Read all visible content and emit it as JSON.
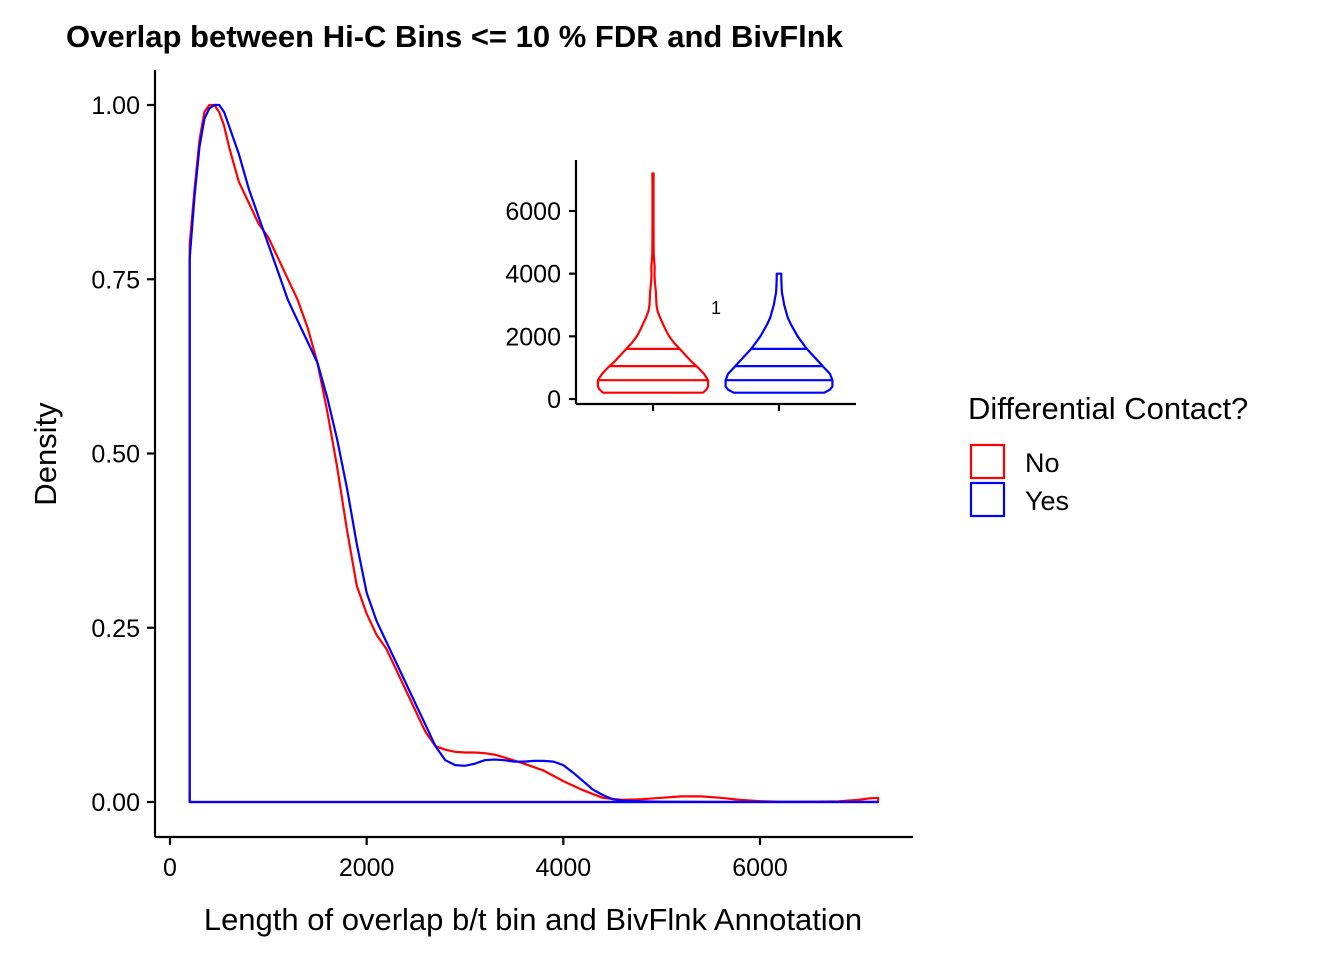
{
  "chart_data": [
    {
      "type": "line",
      "subtype": "density",
      "title": "Overlap between Hi-C Bins <= 10 % FDR and BivFlnk",
      "xlabel": "Length of overlap b/t bin and BivFlnk Annotation",
      "ylabel": "Density",
      "xlim": [
        -100,
        7500
      ],
      "ylim": [
        -0.05,
        1.05
      ],
      "xticks": [
        0,
        2000,
        4000,
        6000
      ],
      "yticks": [
        0.0,
        0.25,
        0.5,
        0.75,
        1.0
      ],
      "xtick_labels": [
        "0",
        "2000",
        "4000",
        "6000"
      ],
      "ytick_labels": [
        "0.00",
        "0.25",
        "0.50",
        "0.75",
        "1.00"
      ],
      "grid": false,
      "series": [
        {
          "name": "No",
          "color": "#ff0000",
          "x": [
            200,
            250,
            300,
            350,
            400,
            450,
            500,
            550,
            600,
            700,
            800,
            900,
            1000,
            1100,
            1200,
            1300,
            1400,
            1500,
            1600,
            1700,
            1800,
            1900,
            2000,
            2100,
            2200,
            2300,
            2400,
            2500,
            2600,
            2700,
            2800,
            2900,
            3000,
            3100,
            3200,
            3300,
            3400,
            3600,
            3800,
            4000,
            4200,
            4400,
            4600,
            4800,
            5000,
            5200,
            5400,
            5600,
            5800,
            6000,
            6200,
            6400,
            6600,
            6800,
            7000,
            7100,
            7200,
            7200,
            200,
            200
          ],
          "y": [
            0.8,
            0.88,
            0.95,
            0.99,
            1.0,
            1.0,
            0.99,
            0.97,
            0.94,
            0.89,
            0.86,
            0.83,
            0.81,
            0.78,
            0.75,
            0.72,
            0.68,
            0.63,
            0.56,
            0.48,
            0.39,
            0.31,
            0.27,
            0.24,
            0.22,
            0.19,
            0.16,
            0.13,
            0.1,
            0.08,
            0.075,
            0.072,
            0.071,
            0.071,
            0.07,
            0.068,
            0.064,
            0.055,
            0.045,
            0.03,
            0.017,
            0.006,
            0.003,
            0.004,
            0.006,
            0.008,
            0.008,
            0.006,
            0.003,
            0.0012,
            0.0005,
            0.0004,
            0.0006,
            0.001,
            0.003,
            0.005,
            0.006,
            0,
            0,
            0.8
          ]
        },
        {
          "name": "Yes",
          "color": "#0000ff",
          "x": [
            200,
            250,
            300,
            350,
            400,
            450,
            500,
            550,
            600,
            700,
            800,
            900,
            1000,
            1100,
            1200,
            1300,
            1400,
            1500,
            1600,
            1700,
            1800,
            1900,
            2000,
            2100,
            2200,
            2300,
            2400,
            2500,
            2600,
            2700,
            2800,
            2900,
            3000,
            3100,
            3200,
            3300,
            3400,
            3500,
            3600,
            3700,
            3800,
            3900,
            4000,
            4100,
            4200,
            4300,
            4400,
            4500,
            4600,
            4700,
            4800,
            5000,
            5500,
            6000,
            6500,
            7000,
            7200,
            7200,
            200,
            200
          ],
          "y": [
            0.78,
            0.87,
            0.94,
            0.98,
            0.995,
            1.0,
            1.0,
            0.99,
            0.97,
            0.93,
            0.88,
            0.84,
            0.8,
            0.76,
            0.72,
            0.69,
            0.66,
            0.63,
            0.58,
            0.52,
            0.45,
            0.37,
            0.3,
            0.26,
            0.23,
            0.2,
            0.17,
            0.14,
            0.11,
            0.08,
            0.06,
            0.053,
            0.052,
            0.055,
            0.06,
            0.061,
            0.06,
            0.058,
            0.058,
            0.059,
            0.059,
            0.058,
            0.053,
            0.042,
            0.03,
            0.018,
            0.01,
            0.004,
            0.002,
            0.0015,
            0.001,
            0.0005,
            0.0003,
            0.0002,
            0.0002,
            0.0002,
            0.0002,
            0,
            0,
            0.78
          ]
        }
      ],
      "legend": {
        "title": "Differential Contact?",
        "entries": [
          "No",
          "Yes"
        ],
        "position": "right"
      }
    },
    {
      "type": "violin",
      "inset": true,
      "ylim": [
        -100,
        7700
      ],
      "yticks": [
        0,
        2000,
        4000,
        6000
      ],
      "ytick_labels": [
        "0",
        "2000",
        "4000",
        "6000"
      ],
      "annotation": "1",
      "series": [
        {
          "name": "No",
          "color": "#ff0000",
          "min": 200,
          "max": 7200,
          "quantiles": [
            600,
            1050,
            1600
          ],
          "profile": [
            [
              200,
              0.86
            ],
            [
              300,
              0.92
            ],
            [
              400,
              0.95
            ],
            [
              600,
              0.95
            ],
            [
              800,
              0.88
            ],
            [
              1000,
              0.78
            ],
            [
              1200,
              0.66
            ],
            [
              1400,
              0.56
            ],
            [
              1600,
              0.46
            ],
            [
              1800,
              0.36
            ],
            [
              2000,
              0.28
            ],
            [
              2200,
              0.22
            ],
            [
              2400,
              0.17
            ],
            [
              2600,
              0.12
            ],
            [
              2800,
              0.08
            ],
            [
              3000,
              0.06
            ],
            [
              3200,
              0.055
            ],
            [
              3400,
              0.05
            ],
            [
              3600,
              0.04
            ],
            [
              3800,
              0.03
            ],
            [
              4000,
              0.025
            ],
            [
              4200,
              0.03
            ],
            [
              4400,
              0.02
            ],
            [
              4600,
              0.012
            ],
            [
              5000,
              0.01
            ],
            [
              5600,
              0.008
            ],
            [
              6200,
              0.008
            ],
            [
              6800,
              0.008
            ],
            [
              7200,
              0.01
            ]
          ]
        },
        {
          "name": "Yes",
          "color": "#0000ff",
          "min": 200,
          "max": 4000,
          "quantiles": [
            600,
            1050,
            1600
          ],
          "profile": [
            [
              200,
              0.78
            ],
            [
              300,
              0.88
            ],
            [
              400,
              0.92
            ],
            [
              600,
              0.92
            ],
            [
              800,
              0.88
            ],
            [
              1000,
              0.78
            ],
            [
              1200,
              0.68
            ],
            [
              1400,
              0.58
            ],
            [
              1600,
              0.48
            ],
            [
              1800,
              0.4
            ],
            [
              2000,
              0.32
            ],
            [
              2200,
              0.26
            ],
            [
              2400,
              0.2
            ],
            [
              2600,
              0.15
            ],
            [
              2800,
              0.12
            ],
            [
              3000,
              0.09
            ],
            [
              3200,
              0.07
            ],
            [
              3400,
              0.05
            ],
            [
              3600,
              0.045
            ],
            [
              3800,
              0.04
            ],
            [
              4000,
              0.04
            ]
          ]
        }
      ]
    }
  ]
}
